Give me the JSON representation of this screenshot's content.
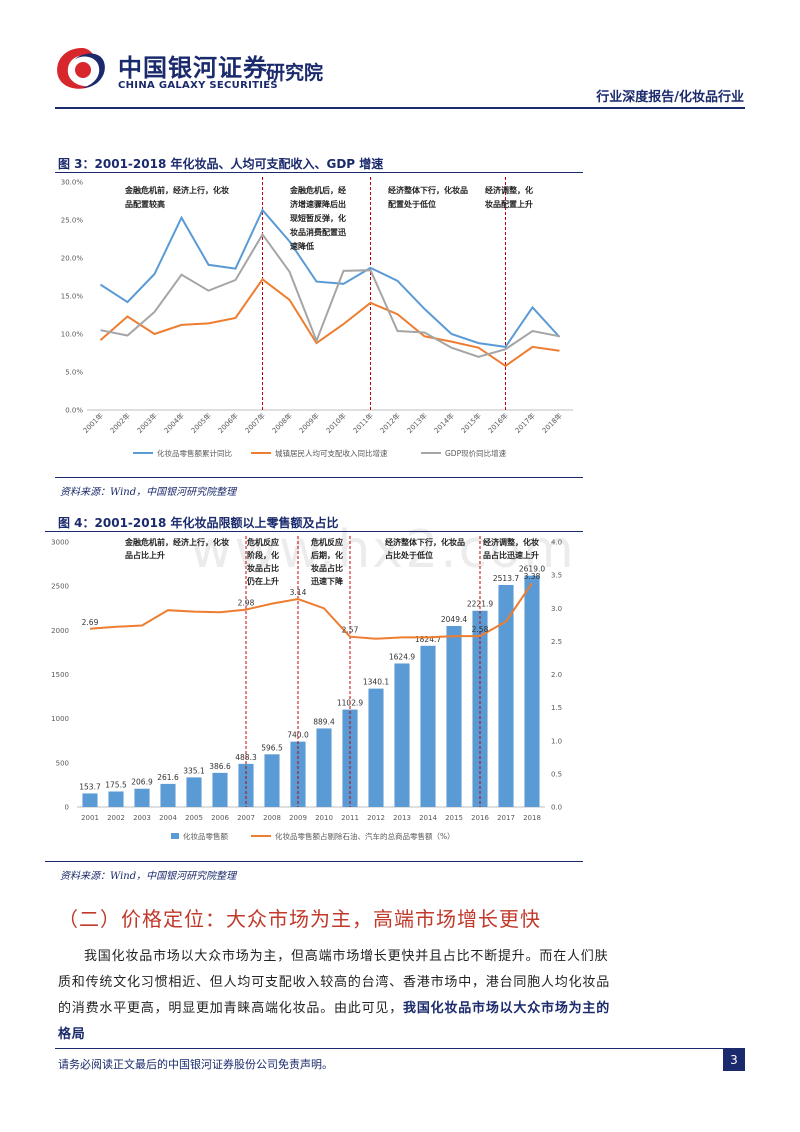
{
  "header": {
    "brand_cn": "中国银河证券",
    "brand_en": "CHINA GALAXY SECURITIES",
    "brand_sub": "研究院",
    "report_type": "行业深度报告/化妆品行业"
  },
  "fig3": {
    "title": "图 3：2001-2018 年化妆品、人均可支配收入、GDP 增速",
    "source": "资料来源：Wind，中国银河研究院整理",
    "annotations": [
      [
        "金融危机前，经济上行，化妆",
        "品配置较高"
      ],
      [
        "金融危机后，经",
        "济增速骤降后出",
        "现短暂反弹，化",
        "妆品消费配置迅",
        "速降低"
      ],
      [
        "经济整体下行，化妆品",
        "配置处于低位"
      ],
      [
        "经济调整，化",
        "妆品配置上升"
      ]
    ],
    "legend": [
      "化妆品零售额累计同比",
      "城镇居民人均可支配收入同比增速",
      "GDP现价同比增速"
    ]
  },
  "fig4": {
    "title": "图 4：2001-2018 年化妆品限额以上零售额及占比",
    "source": "资料来源：Wind，中国银河研究院整理",
    "annotations": [
      [
        "金融危机前，经济上行，化妆",
        "品占比上升"
      ],
      [
        "危机反应",
        "阶段，化",
        "妆品占比",
        "仍在上升"
      ],
      [
        "危机反应",
        "后期，化",
        "妆品占比",
        "迅速下降"
      ],
      [
        "经济整体下行，化妆品",
        "占比处于低位"
      ],
      [
        "经济调整，化妆",
        "品占比迅速上升"
      ]
    ],
    "legend": [
      "化妆品零售额",
      "化妆品零售额占剔除石油、汽车的总商品零售额（%）"
    ]
  },
  "chart_data": [
    {
      "type": "line",
      "x": [
        "2001年",
        "2002年",
        "2003年",
        "2004年",
        "2005年",
        "2006年",
        "2007年",
        "2008年",
        "2009年",
        "2010年",
        "2011年",
        "2012年",
        "2013年",
        "2014年",
        "2015年",
        "2016年",
        "2017年",
        "2018年"
      ],
      "series": [
        {
          "name": "化妆品零售额累计同比",
          "color": "#5b9bd5",
          "values": [
            16.5,
            14.2,
            17.9,
            25.3,
            19.1,
            18.6,
            26.3,
            22.2,
            16.9,
            16.6,
            18.7,
            17.0,
            13.3,
            10.0,
            8.8,
            8.3,
            13.5,
            9.6
          ]
        },
        {
          "name": "城镇居民人均可支配收入同比增速",
          "color": "#ed7d31",
          "values": [
            9.2,
            12.3,
            10.0,
            11.2,
            11.4,
            12.1,
            17.2,
            14.5,
            8.8,
            11.3,
            14.1,
            12.6,
            9.7,
            9.0,
            8.2,
            5.8,
            8.3,
            7.8
          ]
        },
        {
          "name": "GDP现价同比增速",
          "color": "#a5a5a5",
          "values": [
            10.5,
            9.8,
            12.9,
            17.8,
            15.7,
            17.1,
            23.1,
            18.2,
            9.1,
            18.3,
            18.4,
            10.4,
            10.2,
            8.2,
            7.0,
            8.0,
            10.4,
            9.7
          ]
        }
      ],
      "ylim": [
        0,
        30
      ],
      "yticks": [
        "0.0%",
        "5.0%",
        "10.0%",
        "15.0%",
        "20.0%",
        "25.0%",
        "30.0%"
      ],
      "vlines": [
        "2007年",
        "2011年",
        "2016年"
      ]
    },
    {
      "type": "bar",
      "categories": [
        "2001",
        "2002",
        "2003",
        "2004",
        "2005",
        "2006",
        "2007",
        "2008",
        "2009",
        "2010",
        "2011",
        "2012",
        "2013",
        "2014",
        "2015",
        "2016",
        "2017",
        "2018"
      ],
      "bar_series": {
        "name": "化妆品零售额",
        "color": "#5b9bd5",
        "values": [
          153.7,
          175.5,
          206.9,
          261.6,
          335.1,
          386.6,
          488.3,
          596.5,
          740.0,
          889.4,
          1102.9,
          1340.1,
          1624.9,
          1824.7,
          2049.4,
          2221.9,
          2513.7,
          2619.0
        ]
      },
      "bar_labels": [
        "153.7",
        "175.5",
        "206.9",
        "261.6",
        "335.1",
        "386.6",
        "488.3",
        "596.5",
        "740.0",
        "889.4",
        "1102.9",
        "1340.1",
        "1624.9",
        "1824.7",
        "2049.4",
        "2221.9",
        "2513.7",
        "2619.0"
      ],
      "line_series": {
        "name": "化妆品零售额占剔除石油、汽车的总商品零售额（%）",
        "color": "#ed7d31",
        "values": [
          2.69,
          2.72,
          2.74,
          2.97,
          2.95,
          2.94,
          2.98,
          3.07,
          3.14,
          3.0,
          2.57,
          2.54,
          2.56,
          2.56,
          2.58,
          2.58,
          2.8,
          3.38
        ]
      },
      "line_labels": [
        {
          "i": 0,
          "t": "2.69"
        },
        {
          "i": 6,
          "t": "2.98"
        },
        {
          "i": 8,
          "t": "3.14"
        },
        {
          "i": 10,
          "t": "2.57"
        },
        {
          "i": 15,
          "t": "2.58"
        },
        {
          "i": 17,
          "t": "3.38"
        }
      ],
      "ylim_left": [
        0,
        3000
      ],
      "yticks_left": [
        "0",
        "500",
        "1000",
        "1500",
        "2000",
        "2500",
        "3000"
      ],
      "ylim_right": [
        0,
        4
      ],
      "yticks_right": [
        "0.0",
        "0.5",
        "1.0",
        "1.5",
        "2.0",
        "2.5",
        "3.0",
        "3.5",
        "4.0"
      ],
      "vlines": [
        "2007",
        "2009",
        "2011",
        "2016"
      ]
    }
  ],
  "section": {
    "title": "（二）价格定位：大众市场为主，高端市场增长更快"
  },
  "body": {
    "para1_normal": "我国化妆品市场以大众市场为主，但高端市场增长更快并且占比不断提升。而在人们肤质和传统文化习惯相近、但人均可支配收入较高的台湾、香港市场中，港台同胞人均化妆品的消费水平更高，明显更加青睐高端化妆品。由此可见，",
    "para1_bold": "我国化妆品市场以大众市场为主的格局"
  },
  "footer": {
    "disclaimer": "请务必阅读正文最后的中国银河证券股份公司免责声明。",
    "page": "3"
  },
  "watermark": "www.hx2.com"
}
